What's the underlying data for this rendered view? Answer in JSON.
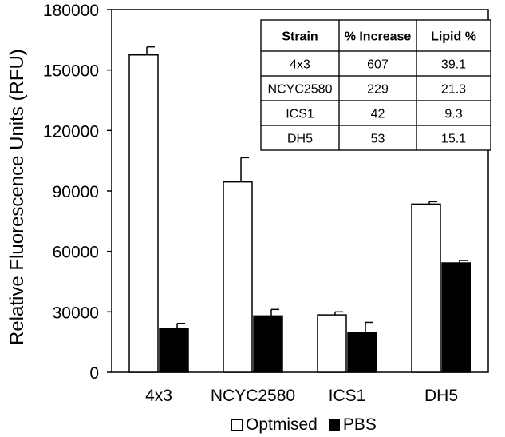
{
  "chart_data": {
    "type": "bar",
    "ylabel": "Relative Fluorescence Units (RFU)",
    "xlabel": "",
    "ylim": [
      0,
      180000
    ],
    "yticks": [
      0,
      30000,
      60000,
      90000,
      120000,
      150000,
      180000
    ],
    "categories": [
      "4x3",
      "NCYC2580",
      "ICS1",
      "DH5"
    ],
    "series": [
      {
        "name": "Optmised",
        "color": "#ffffff",
        "values": [
          157500,
          94500,
          28500,
          83500
        ],
        "errors": [
          4000,
          12000,
          1500,
          1200
        ]
      },
      {
        "name": "PBS",
        "color": "#000000",
        "values": [
          21800,
          28000,
          19800,
          54300
        ],
        "errors": [
          2500,
          3200,
          5000,
          1200
        ]
      }
    ],
    "legend_position": "bottom",
    "grid": false,
    "inset_table": {
      "headers": [
        "Strain",
        "% Increase",
        "Lipid %"
      ],
      "rows": [
        [
          "4x3",
          "607",
          "39.1"
        ],
        [
          "NCYC2580",
          "229",
          "21.3"
        ],
        [
          "ICS1",
          "42",
          "9.3"
        ],
        [
          "DH5",
          "53",
          "15.1"
        ]
      ]
    }
  }
}
